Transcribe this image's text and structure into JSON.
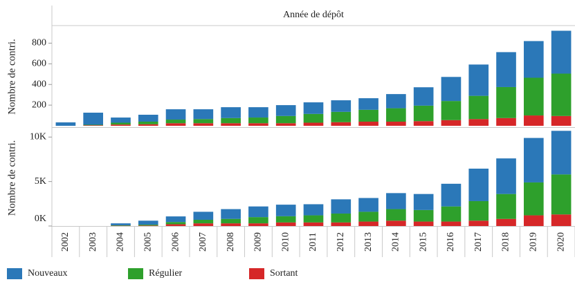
{
  "chart_data": [
    {
      "type": "bar",
      "stacked": true,
      "title": "Année de dépôt",
      "y_label": "Nombre de contri.",
      "series": [
        {
          "values": [
            33,
            117,
            50,
            67,
            100,
            95,
            105,
            100,
            105,
            112,
            112,
            112,
            137,
            178,
            233,
            303,
            338,
            355,
            415
          ]
        },
        {
          "values": [
            0,
            5,
            18,
            25,
            35,
            40,
            50,
            55,
            70,
            85,
            100,
            115,
            130,
            150,
            185,
            225,
            300,
            365,
            410
          ]
        },
        {
          "values": [
            0,
            5,
            12,
            15,
            25,
            25,
            25,
            25,
            25,
            30,
            35,
            40,
            40,
            45,
            55,
            65,
            75,
            100,
            95
          ]
        }
      ],
      "ylim": [
        0,
        950
      ],
      "yticks": [
        200,
        400,
        600,
        800
      ]
    },
    {
      "type": "bar",
      "stacked": true,
      "y_label": "Nombre de contri.",
      "categories": [
        "2002",
        "2003",
        "2004",
        "2005",
        "2006",
        "2007",
        "2008",
        "2009",
        "2010",
        "2011",
        "2012",
        "2013",
        "2014",
        "2015",
        "2016",
        "2017",
        "2018",
        "2019",
        "2020"
      ],
      "series": [
        {
          "name": "Nouveaux",
          "color": "#2b78b8",
          "values": [
            0,
            0,
            220,
            450,
            630,
            900,
            1100,
            1200,
            1300,
            1250,
            1600,
            1550,
            1800,
            1800,
            2550,
            3650,
            4000,
            5000,
            4900
          ]
        },
        {
          "name": "Régulier",
          "color": "#2ea02c",
          "values": [
            0,
            0,
            50,
            100,
            250,
            400,
            500,
            700,
            700,
            800,
            1000,
            1100,
            1300,
            1300,
            1700,
            2200,
            2800,
            3700,
            4500
          ]
        },
        {
          "name": "Sortant",
          "color": "#d62728",
          "values": [
            0,
            0,
            30,
            50,
            200,
            300,
            300,
            300,
            400,
            400,
            400,
            500,
            600,
            500,
            500,
            600,
            800,
            1200,
            1300
          ]
        }
      ],
      "ylim": [
        0,
        10800
      ],
      "yticks": [
        {
          "value": 0,
          "label": "0K"
        },
        {
          "value": 5000,
          "label": "5K"
        },
        {
          "value": 10000,
          "label": "10K"
        }
      ],
      "legend": "bottom"
    }
  ]
}
